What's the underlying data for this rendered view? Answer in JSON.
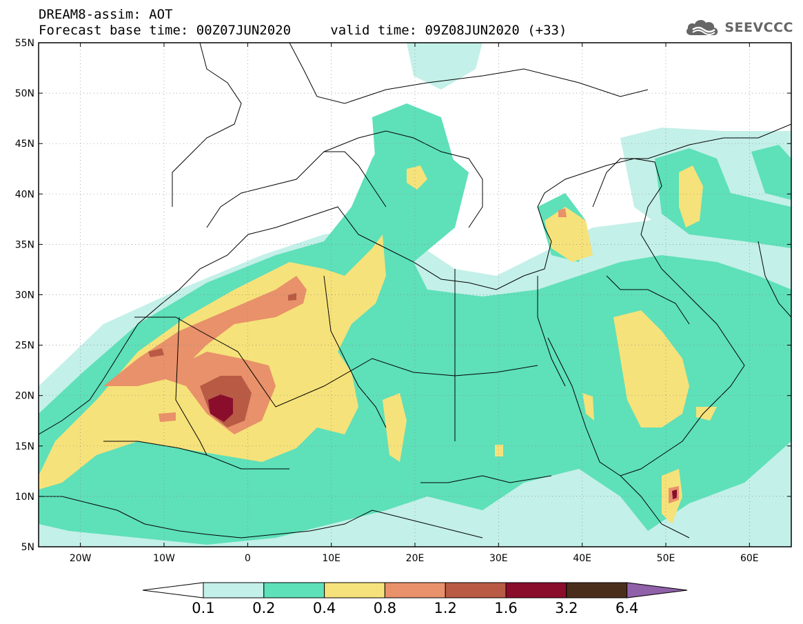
{
  "header": {
    "model": "DREAM8-assim: AOT",
    "base_time": "Forecast base time: 00Z07JUN2020",
    "valid_time": "valid time: 09Z08JUN2020 (+33)"
  },
  "logo": {
    "text": "SEEVCCC",
    "icon": "cloud-logo-icon"
  },
  "map": {
    "lat_labels": [
      "55N",
      "50N",
      "45N",
      "40N",
      "35N",
      "30N",
      "25N",
      "20N",
      "15N",
      "10N",
      "5N"
    ],
    "lat_values": [
      55,
      50,
      45,
      40,
      35,
      30,
      25,
      20,
      15,
      10,
      5
    ],
    "lon_labels": [
      "20W",
      "10W",
      "0",
      "10E",
      "20E",
      "30E",
      "40E",
      "50E",
      "60E"
    ],
    "lon_values": [
      -20,
      -10,
      0,
      10,
      20,
      30,
      40,
      50,
      60
    ],
    "lon_range": [
      -25,
      65
    ],
    "lat_range": [
      5,
      55
    ]
  },
  "legend": {
    "labels": [
      "0.1",
      "0.2",
      "0.4",
      "0.8",
      "1.2",
      "1.6",
      "3.2",
      "6.4"
    ],
    "colors": [
      "#ffffff",
      "#c3f0e8",
      "#5ee0b9",
      "#f6e27a",
      "#e8916a",
      "#b85a44",
      "#8a0d2c",
      "#4a2e1c",
      "#9060a8"
    ]
  }
}
